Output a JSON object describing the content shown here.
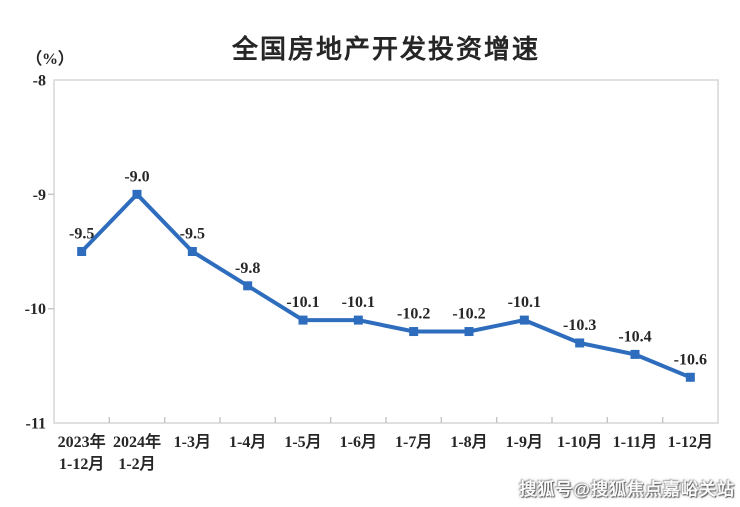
{
  "page": {
    "background": "#ffffff"
  },
  "chart_data": {
    "type": "line",
    "title": "全国房地产开发投资增速",
    "unit_label": "（%）",
    "categories": [
      "2023年\n1-12月",
      "2024年\n1-2月",
      "1-3月",
      "1-4月",
      "1-5月",
      "1-6月",
      "1-7月",
      "1-8月",
      "1-9月",
      "1-10月",
      "1-11月",
      "1-12月"
    ],
    "values": [
      -9.5,
      -9.0,
      -9.5,
      -9.8,
      -10.1,
      -10.1,
      -10.2,
      -10.2,
      -10.1,
      -10.3,
      -10.4,
      -10.6
    ],
    "data_labels": [
      "-9.5",
      "-9.0",
      "-9.5",
      "-9.8",
      "-10.1",
      "-10.1",
      "-10.2",
      "-10.2",
      "-10.1",
      "-10.3",
      "-10.4",
      "-10.6"
    ],
    "ylim": [
      -11,
      -8
    ],
    "yticks": [
      -8,
      -9,
      -10,
      -11
    ],
    "grid": false,
    "legend": "none",
    "line_color": "#2e6dbd",
    "marker": "square",
    "axis_color": "#d9d9d9",
    "tick_color": "#c4c4c4",
    "text_color": "#262626"
  },
  "watermark": {
    "text": "搜狐号@搜狐焦点嘉峪关站"
  }
}
